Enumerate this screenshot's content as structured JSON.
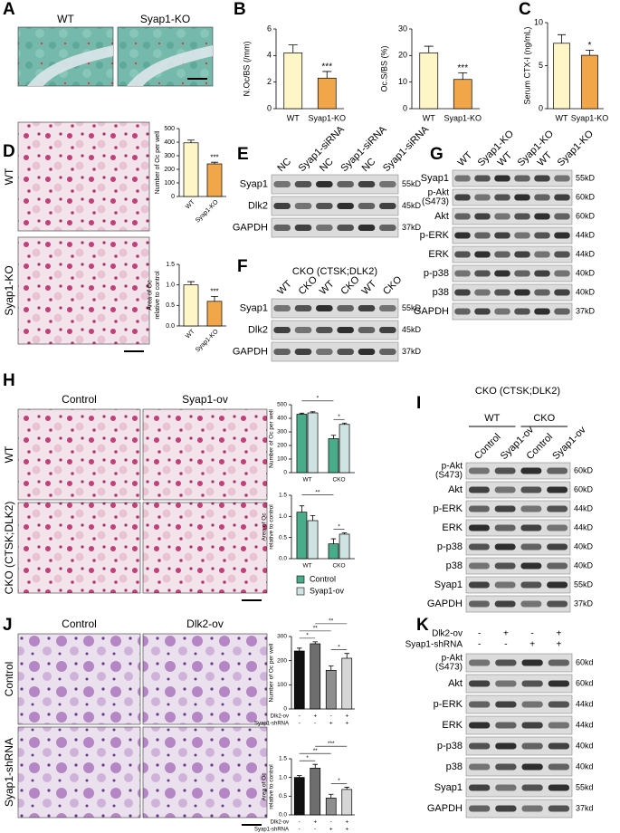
{
  "panel_letters": [
    "A",
    "B",
    "C",
    "D",
    "E",
    "F",
    "G",
    "H",
    "I",
    "J",
    "K"
  ],
  "micrographs": {
    "A": {
      "columns": [
        "WT",
        "Syap1-KO"
      ]
    },
    "D": {
      "rows": [
        "WT",
        "Syap1-KO"
      ]
    },
    "H": {
      "columns": [
        "Control",
        "Syap1-ov"
      ],
      "rows": [
        "WT",
        "CKO (CTSK;DLK2)"
      ]
    },
    "J": {
      "columns": [
        "Control",
        "Dlk2-ov"
      ],
      "rows": [
        "Control",
        "Syap1-shRNA"
      ]
    }
  },
  "blots": {
    "E": {
      "lanes": [
        "NC",
        "Syap1-siRNA",
        "NC",
        "Syap1-siRNA",
        "NC",
        "Syap1-siRNA"
      ],
      "rows": [
        {
          "label": "Syap1",
          "size": "55kD"
        },
        {
          "label": "Dlk2",
          "size": "45kD"
        },
        {
          "label": "GAPDH",
          "size": "37kD"
        }
      ]
    },
    "F": {
      "title": "CKO (CTSK;DLK2)",
      "lanes": [
        "WT",
        "CKO",
        "WT",
        "CKO",
        "WT",
        "CKO"
      ],
      "rows": [
        {
          "label": "Syap1",
          "size": "55kD"
        },
        {
          "label": "Dlk2",
          "size": "45kD"
        },
        {
          "label": "GAPDH",
          "size": "37kD"
        }
      ]
    },
    "G": {
      "lanes": [
        "WT",
        "Syap1-KO",
        "WT",
        "Syap1-KO",
        "WT",
        "Syap1-KO"
      ],
      "rows": [
        {
          "label": "Syap1",
          "size": "55kD"
        },
        {
          "label": [
            "p-Akt",
            "(S473)"
          ],
          "size": "60kD"
        },
        {
          "label": "Akt",
          "size": "60kD"
        },
        {
          "label": "p-ERK",
          "size": "44kD"
        },
        {
          "label": "ERK",
          "size": "44kD"
        },
        {
          "label": "p-p38",
          "size": "40kD"
        },
        {
          "label": "p38",
          "size": "40kD"
        },
        {
          "label": "GAPDH",
          "size": "37kD"
        }
      ]
    },
    "I": {
      "title": "CKO (CTSK;DLK2)",
      "groups": [
        "WT",
        "CKO"
      ],
      "lanes": [
        "Control",
        "Syap1-ov",
        "Control",
        "Syap1-ov"
      ],
      "rows": [
        {
          "label": [
            "p-Akt",
            "(S473)"
          ],
          "size": "60kD"
        },
        {
          "label": "Akt",
          "size": "60kD"
        },
        {
          "label": "p-ERK",
          "size": "44kD"
        },
        {
          "label": "ERK",
          "size": "44kD"
        },
        {
          "label": "p-p38",
          "size": "40kD"
        },
        {
          "label": "p38",
          "size": "40kD"
        },
        {
          "label": "Syap1",
          "size": "55kD"
        },
        {
          "label": "GAPDH",
          "size": "37kD"
        }
      ]
    },
    "K": {
      "conditions": [
        {
          "name": "Dlk2-ov",
          "marks": [
            "-",
            "+",
            "-",
            "+"
          ]
        },
        {
          "name": "Syap1-shRNA",
          "marks": [
            "-",
            "-",
            "+",
            "+"
          ]
        }
      ],
      "rows": [
        {
          "label": [
            "p-Akt",
            "(S473)"
          ],
          "size": "60kd"
        },
        {
          "label": "Akt",
          "size": "60kd"
        },
        {
          "label": "p-ERK",
          "size": "44kd"
        },
        {
          "label": "ERK",
          "size": "44kd"
        },
        {
          "label": "p-p38",
          "size": "40kd"
        },
        {
          "label": "p38",
          "size": "40kd"
        },
        {
          "label": "Syap1",
          "size": "55kd"
        },
        {
          "label": "GAPDH",
          "size": "37kd"
        }
      ]
    }
  },
  "chart_data": [
    {
      "type": "bar",
      "ylabel": [
        "N.Oc/BS (/mm)"
      ],
      "categories": [
        "WT",
        "Syap1-KO"
      ],
      "values": [
        4.2,
        2.3
      ],
      "errors": [
        0.6,
        0.5
      ],
      "colors": [
        "#fff6c8",
        "#f2a64a"
      ],
      "ylim": [
        0,
        6
      ],
      "yticks": [
        0,
        2,
        4,
        6
      ],
      "annotations": [
        "***"
      ]
    },
    {
      "type": "bar",
      "ylabel": [
        "Oc.S/BS (%)"
      ],
      "categories": [
        "WT",
        "Syap1-KO"
      ],
      "values": [
        21,
        11
      ],
      "errors": [
        2.5,
        2.5
      ],
      "colors": [
        "#fff6c8",
        "#f2a64a"
      ],
      "ylim": [
        0,
        30
      ],
      "yticks": [
        0,
        10,
        20,
        30
      ],
      "annotations": [
        "***"
      ]
    },
    {
      "type": "bar",
      "ylabel": [
        "Serum CTX-I (ng/mL)"
      ],
      "categories": [
        "WT",
        "Syap1-KO"
      ],
      "values": [
        7.6,
        6.2
      ],
      "errors": [
        1,
        0.6
      ],
      "colors": [
        "#fff6c8",
        "#f2a64a"
      ],
      "ylim": [
        0,
        10
      ],
      "yticks": [
        0,
        5,
        10
      ],
      "annotations": [
        "*"
      ]
    },
    {
      "type": "bar",
      "ylabel": [
        "Number of Oc per well"
      ],
      "categories": [
        "WT",
        "Syap1-KO"
      ],
      "values": [
        395,
        240
      ],
      "errors": [
        20,
        12
      ],
      "colors": [
        "#fff6c8",
        "#f2a64a"
      ],
      "ylim": [
        0,
        500
      ],
      "yticks": [
        0,
        100,
        200,
        300,
        400,
        500
      ],
      "annotations": [
        "***"
      ]
    },
    {
      "type": "bar",
      "ylabel": [
        "Area of Oc",
        "relative to control"
      ],
      "categories": [
        "WT",
        "Syap1-KO"
      ],
      "values": [
        1.0,
        0.6
      ],
      "errors": [
        0.08,
        0.12
      ],
      "colors": [
        "#fff6c8",
        "#f2a64a"
      ],
      "ylim": [
        0,
        1.5
      ],
      "yticks": [
        {
          "value": 0,
          "label": "0.0"
        },
        {
          "value": 0.5,
          "label": "0.5"
        },
        {
          "value": 1,
          "label": "1.0"
        },
        {
          "value": 1.5,
          "label": "1.5"
        }
      ],
      "annotations": [
        "***"
      ]
    },
    {
      "type": "bar",
      "ylabel": [
        "Number of Oc per well"
      ],
      "categories": [
        "WT",
        "CKO"
      ],
      "series": [
        {
          "name": "Control",
          "color": "#4aab8b",
          "values": [
            430,
            250
          ],
          "errors": [
            8,
            25
          ]
        },
        {
          "name": "Syap1-ov",
          "color": "#cfe3e3",
          "values": [
            440,
            355
          ],
          "errors": [
            8,
            10
          ]
        }
      ],
      "ylim": [
        0,
        500
      ],
      "yticks": [
        0,
        100,
        200,
        300,
        400,
        500
      ],
      "annotations": [
        "*",
        "*"
      ]
    },
    {
      "type": "bar",
      "ylabel": [
        "Area of Oc",
        "relative to control"
      ],
      "categories": [
        "WT",
        "CKO"
      ],
      "series": [
        {
          "name": "Control",
          "color": "#4aab8b",
          "values": [
            1.1,
            0.35
          ],
          "errors": [
            0.15,
            0.12
          ]
        },
        {
          "name": "Syap1-ov",
          "color": "#cfe3e3",
          "values": [
            0.9,
            0.58
          ],
          "errors": [
            0.12,
            0.03
          ]
        }
      ],
      "ylim": [
        0,
        1.5
      ],
      "yticks": [
        {
          "value": 0,
          "label": "0.0"
        },
        {
          "value": 0.5,
          "label": "0.5"
        },
        {
          "value": 1,
          "label": "1.0"
        },
        {
          "value": 1.5,
          "label": "1.5"
        }
      ],
      "annotations": [
        "**",
        "*"
      ],
      "legend": "bottom"
    },
    {
      "type": "bar",
      "ylabel": [
        "Number of Oc per well"
      ],
      "categories": [
        null,
        null,
        null,
        null
      ],
      "values": [
        240,
        270,
        160,
        210
      ],
      "errors": [
        12,
        8,
        18,
        20
      ],
      "colors": [
        "#111111",
        "#6e6e6e",
        "#8f8f8f",
        "#d6d6d6"
      ],
      "ylim": [
        0,
        300
      ],
      "yticks": [
        0,
        100,
        200,
        300
      ],
      "annotations": [
        "**",
        "**",
        "*",
        "*"
      ],
      "conditions": [
        {
          "name": "Dlk2-ov",
          "marks": [
            "-",
            "+",
            "-",
            "+"
          ]
        },
        {
          "name": "Syap1-shRNA",
          "marks": [
            "-",
            "-",
            "+",
            "+"
          ]
        }
      ]
    },
    {
      "type": "bar",
      "ylabel": [
        "Area of Oc",
        "relative to control"
      ],
      "categories": [
        null,
        null,
        null,
        null
      ],
      "values": [
        1.0,
        1.25,
        0.45,
        0.68
      ],
      "errors": [
        0.05,
        0.1,
        0.1,
        0.06
      ],
      "colors": [
        "#111111",
        "#6e6e6e",
        "#8f8f8f",
        "#d6d6d6"
      ],
      "ylim": [
        0,
        1.5
      ],
      "yticks": [
        {
          "value": 0,
          "label": "0.0"
        },
        {
          "value": 0.5,
          "label": "0.5"
        },
        {
          "value": 1,
          "label": "1.0"
        },
        {
          "value": 1.5,
          "label": "1.5"
        }
      ],
      "annotations": [
        "***",
        "**",
        "*",
        "*"
      ],
      "conditions": [
        {
          "name": "Dlk2-ov",
          "marks": [
            "-",
            "+",
            "-",
            "+"
          ]
        },
        {
          "name": "Syap1-shRNA",
          "marks": [
            "-",
            "-",
            "+",
            "+"
          ]
        }
      ]
    }
  ]
}
